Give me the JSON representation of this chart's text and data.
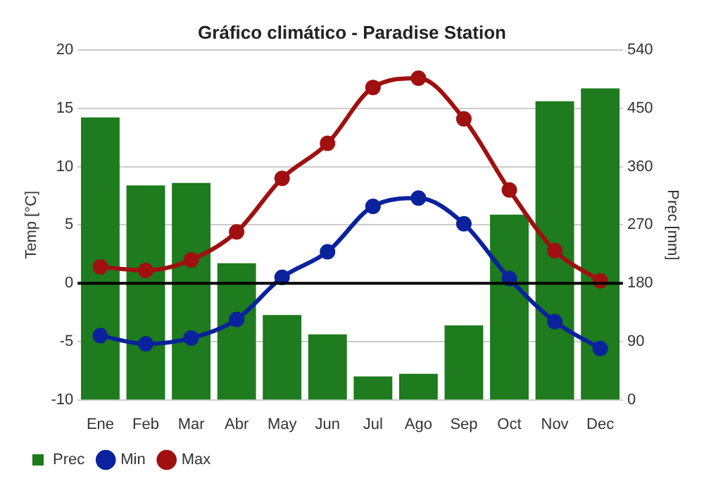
{
  "chart_data": {
    "type": "bar",
    "title": "Gráfico climático - Paradise Station",
    "ylabel": "Temp [°C]",
    "y2label": "Prec [mm]",
    "categories": [
      "Ene",
      "Feb",
      "Mar",
      "Abr",
      "May",
      "Jun",
      "Jul",
      "Ago",
      "Sep",
      "Oct",
      "Nov",
      "Dec"
    ],
    "series": [
      {
        "name": "Prec",
        "axis": "y2",
        "color": "#1e7b1e",
        "values": [
          436,
          331,
          335,
          211,
          131,
          101,
          36,
          40,
          115,
          286,
          461,
          481
        ]
      },
      {
        "name": "Min",
        "type": "line",
        "color": "#0a229c",
        "values": [
          -4.5,
          -5.2,
          -4.7,
          -3.1,
          0.5,
          2.7,
          6.6,
          7.3,
          5.1,
          0.4,
          -3.3,
          -5.6
        ]
      },
      {
        "name": "Max",
        "type": "line",
        "color": "#a01010",
        "values": [
          1.4,
          1.1,
          2.0,
          4.4,
          9.0,
          12.0,
          16.8,
          17.6,
          14.1,
          8.0,
          2.8,
          0.2
        ]
      }
    ],
    "ylim": [
      -10,
      20
    ],
    "yticks": [
      -10,
      -5,
      0,
      5,
      10,
      15,
      20
    ],
    "y2lim": [
      0,
      540
    ],
    "y2ticks": [
      0,
      90,
      180,
      270,
      360,
      450,
      540
    ],
    "ref_lines": [
      {
        "axis": "y",
        "value": 0,
        "color": "#000000"
      }
    ],
    "grid": "y",
    "legend": "bottom left",
    "marker": "circle"
  }
}
